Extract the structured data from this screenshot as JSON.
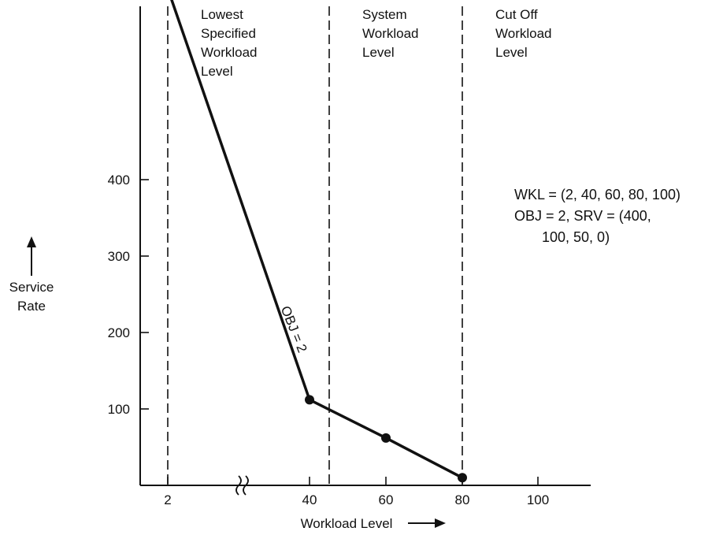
{
  "chart_data": {
    "type": "line",
    "ylabel": "Service\nRate",
    "xlabel": "Workload Level",
    "x_ticks": [
      "2",
      "40",
      "60",
      "80",
      "100"
    ],
    "y_ticks": [
      "100",
      "200",
      "300",
      "400"
    ],
    "x": [
      2,
      40,
      60,
      80
    ],
    "series": [
      {
        "values": [
          650,
          112,
          62,
          10
        ]
      }
    ],
    "reference_lines": [
      {
        "x": 2,
        "label": "Lowest\nSpecified\nWorkload\nLevel"
      },
      {
        "x": 45,
        "label": "System\nWorkload\nLevel"
      },
      {
        "x": 80,
        "label": "Cut Off\nWorkload\nLevel"
      }
    ],
    "segment_label": "OBJ = 2",
    "annotation": [
      "WKL = (2, 40, 60, 80, 100)",
      "OBJ = 2, SRV = (400,",
      "100, 50, 0)"
    ],
    "axis_break": "x",
    "colors": {
      "ink": "#111111"
    }
  }
}
